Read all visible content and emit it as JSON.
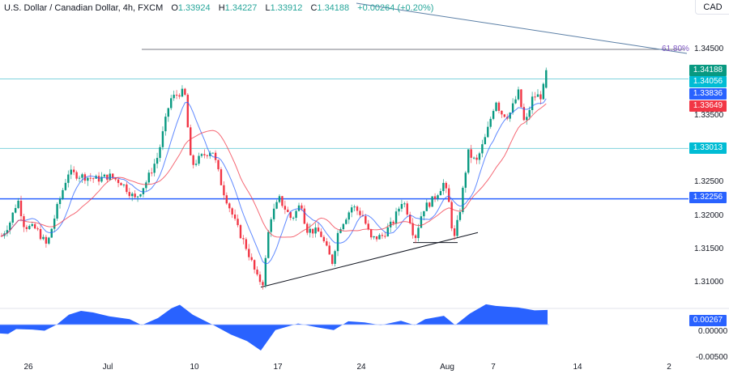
{
  "header": {
    "symbol_title": "U.S. Dollar / Canadian Dollar, 4h, FXCM",
    "ohlc": [
      {
        "key": "O",
        "value": "1.33924"
      },
      {
        "key": "H",
        "value": "1.34227"
      },
      {
        "key": "L",
        "value": "1.33912"
      },
      {
        "key": "C",
        "value": "1.34188"
      }
    ],
    "change": "+0.00264 (+0.20%)"
  },
  "price_axis": {
    "currency": "CAD",
    "ticks": [
      "1.34500",
      "1.33500",
      "1.32500",
      "1.32000",
      "1.31500",
      "1.31000"
    ],
    "labels": [
      {
        "value": "1.34188",
        "color": "#089981",
        "role": "last-price"
      },
      {
        "value": "1.34056",
        "color": "#00bcd4",
        "role": "horizontal-line"
      },
      {
        "value": "1.33836",
        "color": "#2962ff",
        "role": "ma-fast"
      },
      {
        "value": "1.33649",
        "color": "#f23645",
        "role": "ma-slow"
      },
      {
        "value": "1.33013",
        "color": "#00bcd4",
        "role": "horizontal-line"
      },
      {
        "value": "1.32256",
        "color": "#2962ff",
        "role": "horizontal-line"
      }
    ]
  },
  "indicator_axis": {
    "ticks": [
      "0.00000",
      "-0.00500"
    ],
    "current_label": {
      "value": "0.00267",
      "color": "#2962ff"
    }
  },
  "time_axis": {
    "ticks": [
      {
        "label": "26",
        "x": 35
      },
      {
        "label": "Jul",
        "x": 133
      },
      {
        "label": "10",
        "x": 240
      },
      {
        "label": "17",
        "x": 343
      },
      {
        "label": "24",
        "x": 446
      },
      {
        "label": "Aug",
        "x": 552
      },
      {
        "label": "7",
        "x": 609
      },
      {
        "label": "14",
        "x": 713
      },
      {
        "label": "2",
        "x": 826
      }
    ]
  },
  "drawings": {
    "fib_level_label": "61.80%",
    "fib_level_price": 1.345,
    "horizontal_lines": [
      1.34056,
      1.33013,
      1.32256
    ],
    "trendline": {
      "from": {
        "x": 322,
        "price": 1.3093
      },
      "to": {
        "x": 590,
        "price": 1.3175
      }
    },
    "support_segment": {
      "from": {
        "x": 510,
        "price": 1.316
      },
      "to": {
        "x": 565,
        "price": 1.316
      }
    }
  },
  "colors": {
    "up": "#089981",
    "down": "#f23645",
    "ma_fast": "#2962ff",
    "ma_slow": "#f23645",
    "hline_teal": "#00bcd4",
    "hline_blue": "#2962ff",
    "oscillator": "#2962ff"
  },
  "chart_data": {
    "type": "candlestick",
    "title": "U.S. Dollar / Canadian Dollar, 4h, FXCM",
    "xlabel": "",
    "ylabel": "CAD",
    "ylim": [
      1.3055,
      1.351
    ],
    "x_tick_labels": [
      "26",
      "Jul",
      "10",
      "17",
      "24",
      "Aug",
      "7",
      "14",
      "2"
    ],
    "price_path_waypoints": [
      {
        "x": 2,
        "price": 1.317
      },
      {
        "x": 12,
        "price": 1.319
      },
      {
        "x": 22,
        "price": 1.3225
      },
      {
        "x": 30,
        "price": 1.3185
      },
      {
        "x": 45,
        "price": 1.318
      },
      {
        "x": 58,
        "price": 1.3155
      },
      {
        "x": 70,
        "price": 1.321
      },
      {
        "x": 84,
        "price": 1.3265
      },
      {
        "x": 100,
        "price": 1.326
      },
      {
        "x": 120,
        "price": 1.3255
      },
      {
        "x": 135,
        "price": 1.326
      },
      {
        "x": 150,
        "price": 1.325
      },
      {
        "x": 167,
        "price": 1.3225
      },
      {
        "x": 180,
        "price": 1.325
      },
      {
        "x": 195,
        "price": 1.329
      },
      {
        "x": 210,
        "price": 1.3375
      },
      {
        "x": 222,
        "price": 1.3385
      },
      {
        "x": 228,
        "price": 1.3385
      },
      {
        "x": 236,
        "price": 1.3275
      },
      {
        "x": 250,
        "price": 1.329
      },
      {
        "x": 262,
        "price": 1.33
      },
      {
        "x": 275,
        "price": 1.324
      },
      {
        "x": 292,
        "price": 1.3185
      },
      {
        "x": 305,
        "price": 1.315
      },
      {
        "x": 318,
        "price": 1.3105
      },
      {
        "x": 325,
        "price": 1.31
      },
      {
        "x": 333,
        "price": 1.3195
      },
      {
        "x": 345,
        "price": 1.3225
      },
      {
        "x": 360,
        "price": 1.3195
      },
      {
        "x": 372,
        "price": 1.322
      },
      {
        "x": 378,
        "price": 1.318
      },
      {
        "x": 395,
        "price": 1.3175
      },
      {
        "x": 410,
        "price": 1.313
      },
      {
        "x": 418,
        "price": 1.318
      },
      {
        "x": 435,
        "price": 1.3215
      },
      {
        "x": 448,
        "price": 1.32
      },
      {
        "x": 458,
        "price": 1.3165
      },
      {
        "x": 472,
        "price": 1.317
      },
      {
        "x": 485,
        "price": 1.319
      },
      {
        "x": 497,
        "price": 1.3225
      },
      {
        "x": 505,
        "price": 1.32
      },
      {
        "x": 512,
        "price": 1.3165
      },
      {
        "x": 522,
        "price": 1.321
      },
      {
        "x": 535,
        "price": 1.3225
      },
      {
        "x": 548,
        "price": 1.325
      },
      {
        "x": 555,
        "price": 1.3215
      },
      {
        "x": 560,
        "price": 1.316
      },
      {
        "x": 568,
        "price": 1.321
      },
      {
        "x": 578,
        "price": 1.3295
      },
      {
        "x": 588,
        "price": 1.328
      },
      {
        "x": 600,
        "price": 1.332
      },
      {
        "x": 612,
        "price": 1.3375
      },
      {
        "x": 618,
        "price": 1.3355
      },
      {
        "x": 628,
        "price": 1.335
      },
      {
        "x": 640,
        "price": 1.3385
      },
      {
        "x": 648,
        "price": 1.3335
      },
      {
        "x": 658,
        "price": 1.338
      },
      {
        "x": 668,
        "price": 1.338
      },
      {
        "x": 676,
        "price": 1.3415
      }
    ],
    "last_candle": {
      "open": 1.33924,
      "high": 1.34227,
      "low": 1.33912,
      "close": 1.34188
    },
    "moving_averages": [
      {
        "name": "MA fast",
        "last": 1.33836,
        "color": "#2962ff"
      },
      {
        "name": "MA slow",
        "last": 1.33649,
        "color": "#f23645"
      }
    ],
    "horizontal_levels": [
      1.34056,
      1.33013,
      1.32256
    ],
    "fib_level": {
      "label": "61.80%",
      "price": 1.345
    },
    "oscillator": {
      "type": "area",
      "last": 0.00267,
      "ylim": [
        -0.006,
        0.004
      ],
      "ticks": [
        0.0,
        -0.005
      ],
      "path_waypoints": [
        {
          "x": 0,
          "value": -0.0016
        },
        {
          "x": 10,
          "value": -0.0017
        },
        {
          "x": 20,
          "value": -0.0008
        },
        {
          "x": 40,
          "value": -0.0009
        },
        {
          "x": 55,
          "value": -0.0011
        },
        {
          "x": 70,
          "value": 0.0
        },
        {
          "x": 85,
          "value": 0.0018
        },
        {
          "x": 100,
          "value": 0.0025
        },
        {
          "x": 115,
          "value": 0.0022
        },
        {
          "x": 135,
          "value": 0.0015
        },
        {
          "x": 160,
          "value": 0.001
        },
        {
          "x": 175,
          "value": -0.0001
        },
        {
          "x": 195,
          "value": 0.0012
        },
        {
          "x": 212,
          "value": 0.003
        },
        {
          "x": 222,
          "value": 0.0036
        },
        {
          "x": 238,
          "value": 0.0018
        },
        {
          "x": 265,
          "value": -0.0002
        },
        {
          "x": 285,
          "value": -0.0018
        },
        {
          "x": 305,
          "value": -0.003
        },
        {
          "x": 322,
          "value": -0.0047
        },
        {
          "x": 340,
          "value": -0.001
        },
        {
          "x": 368,
          "value": 0.0002
        },
        {
          "x": 392,
          "value": -0.0005
        },
        {
          "x": 412,
          "value": -0.001
        },
        {
          "x": 430,
          "value": 0.0006
        },
        {
          "x": 450,
          "value": 0.0004
        },
        {
          "x": 470,
          "value": -0.0001
        },
        {
          "x": 495,
          "value": 0.0007
        },
        {
          "x": 512,
          "value": -0.0001
        },
        {
          "x": 525,
          "value": 0.001
        },
        {
          "x": 548,
          "value": 0.0016
        },
        {
          "x": 562,
          "value": -0.0001
        },
        {
          "x": 580,
          "value": 0.002
        },
        {
          "x": 600,
          "value": 0.0037
        },
        {
          "x": 612,
          "value": 0.0034
        },
        {
          "x": 640,
          "value": 0.0031
        },
        {
          "x": 660,
          "value": 0.0026
        },
        {
          "x": 676,
          "value": 0.00267
        }
      ]
    }
  }
}
